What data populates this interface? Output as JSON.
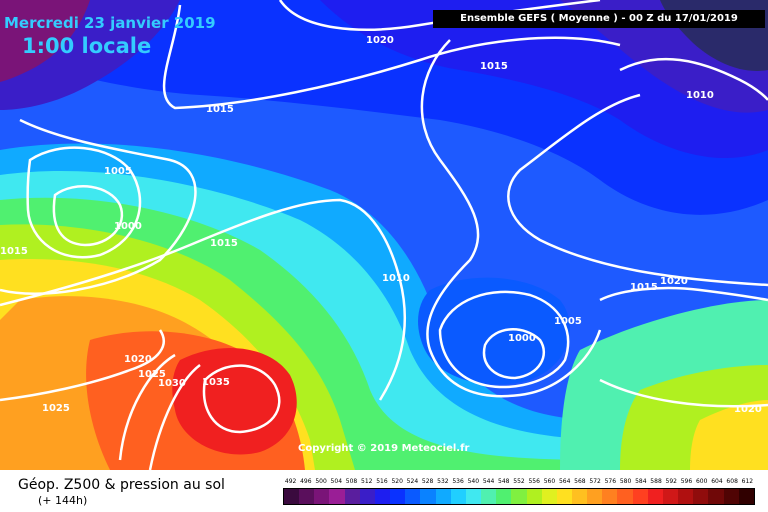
{
  "date_title": "Mercredi 23 janvier 2019",
  "time_title": "1:00 locale",
  "header": "Ensemble GEFS  ( Moyenne )  -  00 Z du 17/01/2019",
  "copyright": "Copyright © 2019 Meteociel.fr",
  "product": "Géop. Z500 & pression au sol",
  "lead": "(+ 144h)",
  "scale": {
    "labels": [
      "492",
      "496",
      "500",
      "504",
      "508",
      "512",
      "516",
      "520",
      "524",
      "528",
      "532",
      "536",
      "540",
      "544",
      "548",
      "552",
      "556",
      "560",
      "564",
      "568",
      "572",
      "576",
      "580",
      "584",
      "588",
      "592",
      "596",
      "600",
      "604",
      "608",
      "612"
    ],
    "colors": [
      "#3a0a3e",
      "#5a0f5c",
      "#7a1478",
      "#9a1e96",
      "#5a1e9e",
      "#3a1ec8",
      "#1e1ef0",
      "#0a32ff",
      "#0a5aff",
      "#0a82ff",
      "#10aaff",
      "#20cfff",
      "#40e8f0",
      "#50f0b0",
      "#50f070",
      "#80f040",
      "#b0f020",
      "#e0f020",
      "#ffe020",
      "#ffc020",
      "#ffa020",
      "#ff8020",
      "#ff6020",
      "#ff4020",
      "#f02020",
      "#d01818",
      "#b01010",
      "#900c0c",
      "#700808",
      "#500404",
      "#300000"
    ]
  },
  "isobar_labels": [
    "1020",
    "1015",
    "1015",
    "1010",
    "1005",
    "1000",
    "1015",
    "1015",
    "1010",
    "1020",
    "1015",
    "1005",
    "1000",
    "1020",
    "1025",
    "1030",
    "1035",
    "1025",
    "1020"
  ]
}
